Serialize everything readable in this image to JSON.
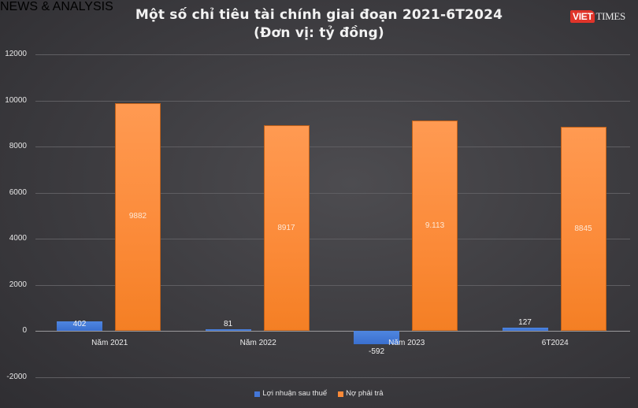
{
  "header": {
    "title_line1": "Một số chỉ tiêu tài chính giai đoạn 2021-6T2024",
    "title_line2": "(Đơn vị: tỷ đồng)"
  },
  "logo": {
    "part1": "VIET",
    "part2": "TIMES",
    "tagline": "NEWS & ANALYSIS"
  },
  "colors": {
    "background": "#3f3e42",
    "series_blue": "#4477d8",
    "series_orange": "#fb8a38",
    "text": "#f2f2f2"
  },
  "axis": {
    "y_ticks": [
      "12000",
      "10000",
      "8000",
      "6000",
      "4000",
      "2000",
      "0",
      "-2000"
    ]
  },
  "categories": [
    "Năm 2021",
    "Năm 2022",
    "Năm 2023",
    "6T2024"
  ],
  "labels": {
    "blue": [
      "402",
      "81",
      "-592",
      "127"
    ],
    "orange": [
      "9882",
      "8917",
      "9.113",
      "8845"
    ]
  },
  "legend": {
    "items": [
      {
        "label": "Lợi nhuận sau thuế",
        "color": "#4477d8"
      },
      {
        "label": "Nợ phải trả",
        "color": "#fb8a38"
      }
    ]
  },
  "chart_data": {
    "type": "bar",
    "title": "Một số chỉ tiêu tài chính giai đoạn 2021-6T2024 (Đơn vị: tỷ đồng)",
    "categories": [
      "Năm 2021",
      "Năm 2022",
      "Năm 2023",
      "6T2024"
    ],
    "series": [
      {
        "name": "Lợi nhuận sau thuế",
        "color": "#4477d8",
        "values": [
          402,
          81,
          -592,
          127
        ]
      },
      {
        "name": "Nợ phải trả",
        "color": "#fb8a38",
        "values": [
          9882,
          8917,
          9113,
          8845
        ]
      }
    ],
    "data_labels": {
      "Lợi nhuận sau thuế": [
        "402",
        "81",
        "-592",
        "127"
      ],
      "Nợ phải trả": [
        "9882",
        "8917",
        "9.113",
        "8845"
      ]
    },
    "xlabel": "",
    "ylabel": "",
    "ylim": [
      -2000,
      12000
    ],
    "y_ticks": [
      -2000,
      0,
      2000,
      4000,
      6000,
      8000,
      10000,
      12000
    ],
    "grid": true,
    "legend_position": "bottom"
  }
}
